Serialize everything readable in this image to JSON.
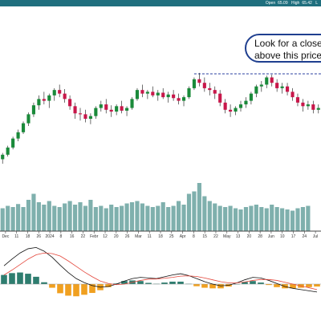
{
  "header": {
    "open_label": "Open",
    "open_value": "65.09",
    "high_label": "High",
    "high_value": "65.42",
    "extra_label": "L"
  },
  "annotation": {
    "line1": "Look for a close",
    "line2": "above this price"
  },
  "colors": {
    "up": "#1a8a3a",
    "down": "#c8174a",
    "volume": "#7fb0ad",
    "macd": "#111111",
    "signal": "#e4473c",
    "hist_pos": "#2e7d6f",
    "hist_neg": "#f0a020",
    "resistance": "#2a3fa0"
  },
  "chart_data": [
    {
      "type": "candlestick",
      "x_tick_labels": [
        "Dec",
        "11",
        "18",
        "26",
        "2024",
        "8",
        "16",
        "22",
        "Febr",
        "12",
        "20",
        "26",
        "Mar",
        "11",
        "18",
        "25",
        "Apr",
        "8",
        "15",
        "22",
        "May",
        "13",
        "20",
        "28",
        "Jun",
        "10",
        "17",
        "24",
        "Jul"
      ],
      "resistance_level": 1.0,
      "y_scale": "unlabeled (normalized 0-1)",
      "candles": [
        {
          "o": 0.05,
          "h": 0.12,
          "l": 0.0,
          "c": 0.1
        },
        {
          "o": 0.1,
          "h": 0.2,
          "l": 0.08,
          "c": 0.18
        },
        {
          "o": 0.18,
          "h": 0.3,
          "l": 0.16,
          "c": 0.28
        },
        {
          "o": 0.28,
          "h": 0.38,
          "l": 0.25,
          "c": 0.35
        },
        {
          "o": 0.35,
          "h": 0.47,
          "l": 0.33,
          "c": 0.45
        },
        {
          "o": 0.45,
          "h": 0.57,
          "l": 0.42,
          "c": 0.55
        },
        {
          "o": 0.55,
          "h": 0.68,
          "l": 0.52,
          "c": 0.65
        },
        {
          "o": 0.65,
          "h": 0.76,
          "l": 0.6,
          "c": 0.72
        },
        {
          "o": 0.72,
          "h": 0.8,
          "l": 0.66,
          "c": 0.7
        },
        {
          "o": 0.7,
          "h": 0.78,
          "l": 0.62,
          "c": 0.76
        },
        {
          "o": 0.76,
          "h": 0.84,
          "l": 0.7,
          "c": 0.82
        },
        {
          "o": 0.82,
          "h": 0.88,
          "l": 0.74,
          "c": 0.78
        },
        {
          "o": 0.78,
          "h": 0.83,
          "l": 0.68,
          "c": 0.72
        },
        {
          "o": 0.72,
          "h": 0.76,
          "l": 0.6,
          "c": 0.64
        },
        {
          "o": 0.64,
          "h": 0.68,
          "l": 0.5,
          "c": 0.56
        },
        {
          "o": 0.56,
          "h": 0.62,
          "l": 0.48,
          "c": 0.55
        },
        {
          "o": 0.55,
          "h": 0.6,
          "l": 0.46,
          "c": 0.5
        },
        {
          "o": 0.5,
          "h": 0.56,
          "l": 0.44,
          "c": 0.53
        },
        {
          "o": 0.53,
          "h": 0.64,
          "l": 0.5,
          "c": 0.62
        },
        {
          "o": 0.62,
          "h": 0.7,
          "l": 0.58,
          "c": 0.66
        },
        {
          "o": 0.66,
          "h": 0.72,
          "l": 0.56,
          "c": 0.6
        },
        {
          "o": 0.6,
          "h": 0.65,
          "l": 0.52,
          "c": 0.58
        },
        {
          "o": 0.58,
          "h": 0.66,
          "l": 0.54,
          "c": 0.64
        },
        {
          "o": 0.64,
          "h": 0.7,
          "l": 0.56,
          "c": 0.59
        },
        {
          "o": 0.59,
          "h": 0.64,
          "l": 0.53,
          "c": 0.62
        },
        {
          "o": 0.62,
          "h": 0.74,
          "l": 0.6,
          "c": 0.72
        },
        {
          "o": 0.72,
          "h": 0.84,
          "l": 0.7,
          "c": 0.82
        },
        {
          "o": 0.82,
          "h": 0.88,
          "l": 0.74,
          "c": 0.78
        },
        {
          "o": 0.78,
          "h": 0.82,
          "l": 0.72,
          "c": 0.8
        },
        {
          "o": 0.8,
          "h": 0.86,
          "l": 0.74,
          "c": 0.76
        },
        {
          "o": 0.76,
          "h": 0.82,
          "l": 0.7,
          "c": 0.79
        },
        {
          "o": 0.79,
          "h": 0.84,
          "l": 0.72,
          "c": 0.74
        },
        {
          "o": 0.74,
          "h": 0.8,
          "l": 0.68,
          "c": 0.77
        },
        {
          "o": 0.77,
          "h": 0.82,
          "l": 0.7,
          "c": 0.73
        },
        {
          "o": 0.73,
          "h": 0.78,
          "l": 0.66,
          "c": 0.7
        },
        {
          "o": 0.7,
          "h": 0.76,
          "l": 0.64,
          "c": 0.74
        },
        {
          "o": 0.74,
          "h": 0.86,
          "l": 0.72,
          "c": 0.84
        },
        {
          "o": 0.84,
          "h": 0.96,
          "l": 0.82,
          "c": 0.94
        },
        {
          "o": 0.94,
          "h": 1.01,
          "l": 0.86,
          "c": 0.9
        },
        {
          "o": 0.9,
          "h": 0.96,
          "l": 0.8,
          "c": 0.84
        },
        {
          "o": 0.84,
          "h": 0.9,
          "l": 0.76,
          "c": 0.82
        },
        {
          "o": 0.82,
          "h": 0.86,
          "l": 0.72,
          "c": 0.78
        },
        {
          "o": 0.78,
          "h": 0.82,
          "l": 0.64,
          "c": 0.68
        },
        {
          "o": 0.68,
          "h": 0.72,
          "l": 0.56,
          "c": 0.6
        },
        {
          "o": 0.6,
          "h": 0.66,
          "l": 0.52,
          "c": 0.58
        },
        {
          "o": 0.58,
          "h": 0.64,
          "l": 0.54,
          "c": 0.62
        },
        {
          "o": 0.62,
          "h": 0.7,
          "l": 0.58,
          "c": 0.66
        },
        {
          "o": 0.66,
          "h": 0.74,
          "l": 0.62,
          "c": 0.7
        },
        {
          "o": 0.7,
          "h": 0.8,
          "l": 0.66,
          "c": 0.78
        },
        {
          "o": 0.78,
          "h": 0.88,
          "l": 0.74,
          "c": 0.86
        },
        {
          "o": 0.86,
          "h": 0.92,
          "l": 0.8,
          "c": 0.88
        },
        {
          "o": 0.88,
          "h": 0.98,
          "l": 0.84,
          "c": 0.96
        },
        {
          "o": 0.96,
          "h": 0.99,
          "l": 0.86,
          "c": 0.9
        },
        {
          "o": 0.9,
          "h": 0.94,
          "l": 0.8,
          "c": 0.84
        },
        {
          "o": 0.84,
          "h": 0.9,
          "l": 0.78,
          "c": 0.86
        },
        {
          "o": 0.86,
          "h": 0.9,
          "l": 0.76,
          "c": 0.8
        },
        {
          "o": 0.8,
          "h": 0.84,
          "l": 0.7,
          "c": 0.74
        },
        {
          "o": 0.74,
          "h": 0.78,
          "l": 0.64,
          "c": 0.68
        },
        {
          "o": 0.68,
          "h": 0.72,
          "l": 0.58,
          "c": 0.64
        },
        {
          "o": 0.64,
          "h": 0.7,
          "l": 0.6,
          "c": 0.66
        },
        {
          "o": 0.66,
          "h": 0.7,
          "l": 0.56,
          "c": 0.6
        },
        {
          "o": 0.6,
          "h": 0.66,
          "l": 0.56,
          "c": 0.62
        }
      ],
      "volume": [
        0.38,
        0.42,
        0.4,
        0.45,
        0.4,
        0.52,
        0.62,
        0.48,
        0.44,
        0.5,
        0.42,
        0.4,
        0.46,
        0.5,
        0.44,
        0.48,
        0.42,
        0.52,
        0.4,
        0.42,
        0.38,
        0.44,
        0.4,
        0.42,
        0.46,
        0.48,
        0.5,
        0.46,
        0.42,
        0.4,
        0.42,
        0.48,
        0.4,
        0.42,
        0.5,
        0.44,
        0.62,
        0.66,
        0.8,
        0.58,
        0.5,
        0.46,
        0.42,
        0.4,
        0.42,
        0.38,
        0.36,
        0.4,
        0.42,
        0.44,
        0.4,
        0.38,
        0.44,
        0.4,
        0.38,
        0.36,
        0.34,
        0.38,
        0.4,
        0.42
      ],
      "macd": [
        0.6,
        0.82,
        1.02,
        1.16,
        1.2,
        1.08,
        0.88,
        0.62,
        0.38,
        0.18,
        0.05,
        -0.05,
        -0.1,
        -0.08,
        0.0,
        0.1,
        0.18,
        0.22,
        0.2,
        0.18,
        0.24,
        0.3,
        0.34,
        0.28,
        0.18,
        0.08,
        0.0,
        -0.06,
        -0.04,
        0.04,
        0.14,
        0.22,
        0.2,
        0.12,
        0.02,
        -0.08,
        -0.14,
        -0.18,
        -0.22,
        -0.26
      ],
      "signal": [
        0.3,
        0.46,
        0.64,
        0.82,
        0.96,
        1.02,
        1.0,
        0.92,
        0.76,
        0.58,
        0.4,
        0.24,
        0.1,
        0.02,
        -0.02,
        0.0,
        0.06,
        0.12,
        0.16,
        0.17,
        0.19,
        0.22,
        0.26,
        0.27,
        0.25,
        0.2,
        0.14,
        0.08,
        0.04,
        0.04,
        0.07,
        0.12,
        0.15,
        0.15,
        0.12,
        0.06,
        0.0,
        -0.06,
        -0.12,
        -0.18
      ]
    }
  ]
}
